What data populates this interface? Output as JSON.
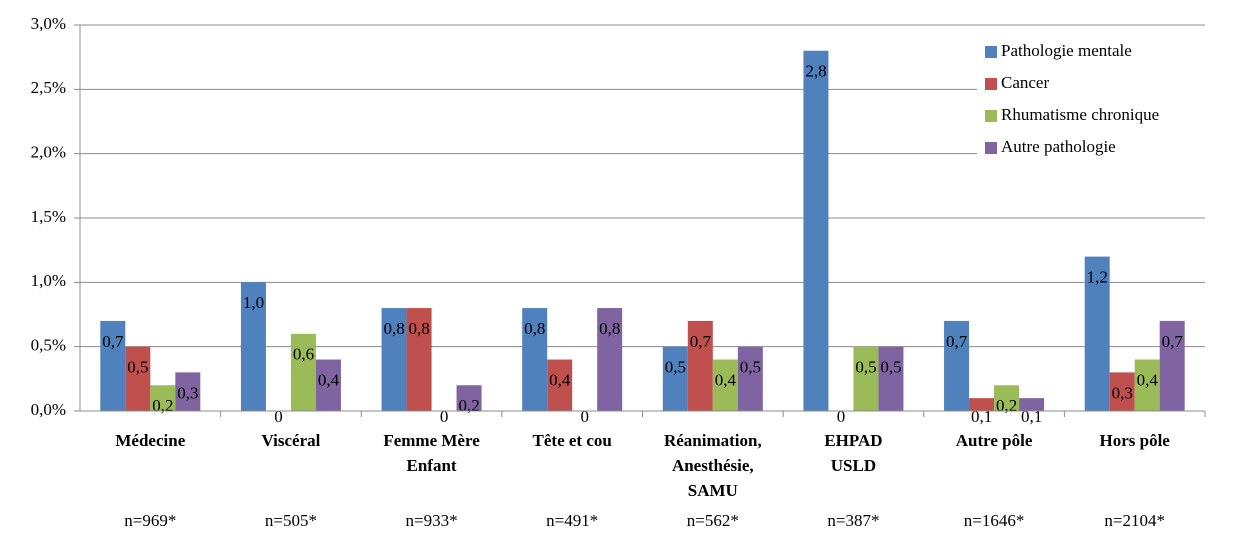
{
  "chart_data": {
    "type": "bar",
    "categories": [
      "Médecine",
      "Viscéral",
      "Femme Mère\nEnfant",
      "Tête et cou",
      "Réanimation,\nAnesthésie,\nSAMU",
      "EHPAD\nUSLD",
      "Autre pôle",
      "Hors pôle"
    ],
    "sample_sizes": [
      "n=969*",
      "n=505*",
      "n=933*",
      "n=491*",
      "n=562*",
      "n=387*",
      "n=1646*",
      "n=2104*"
    ],
    "series": [
      {
        "name": "Pathologie mentale",
        "color": "#4f81bd",
        "values": [
          0.7,
          1.0,
          0.8,
          0.8,
          0.5,
          2.8,
          0.7,
          1.2
        ],
        "value_labels": [
          "0,7",
          "1,0",
          "0,8",
          "0,8",
          "0,5",
          "2,8",
          "0,7",
          "1,2"
        ]
      },
      {
        "name": "Cancer",
        "color": "#c0504d",
        "values": [
          0.5,
          0,
          0.8,
          0.4,
          0.7,
          0,
          0.1,
          0.3
        ],
        "value_labels": [
          "0,5",
          "0",
          "0,8",
          "0,4",
          "0,7",
          "0",
          "0,1",
          "0,3"
        ]
      },
      {
        "name": "Rhumatisme chronique",
        "color": "#9bbb59",
        "values": [
          0.2,
          0.6,
          0,
          0,
          0.4,
          0.5,
          0.2,
          0.4
        ],
        "value_labels": [
          "0,2",
          "0,6",
          "0",
          "0",
          "0,4",
          "0,5",
          "0,2",
          "0,4"
        ]
      },
      {
        "name": "Autre pathologie",
        "color": "#8064a2",
        "values": [
          0.3,
          0.4,
          0.2,
          0.8,
          0.5,
          0.5,
          0.1,
          0.7
        ],
        "value_labels": [
          "0,3",
          "0,4",
          "0,2",
          "0,8",
          "0,5",
          "0,5",
          "0,1",
          "0,7"
        ]
      }
    ],
    "ylim": [
      0,
      3.0
    ],
    "yticks": [
      {
        "value": 0,
        "label": "0,0%"
      },
      {
        "value": 0.5,
        "label": "0,5%"
      },
      {
        "value": 1.0,
        "label": "1,0%"
      },
      {
        "value": 1.5,
        "label": "1,5%"
      },
      {
        "value": 2.0,
        "label": "2,0%"
      },
      {
        "value": 2.5,
        "label": "2,5%"
      },
      {
        "value": 3.0,
        "label": "3,0%"
      }
    ],
    "grid": true,
    "legend": "upper right"
  }
}
